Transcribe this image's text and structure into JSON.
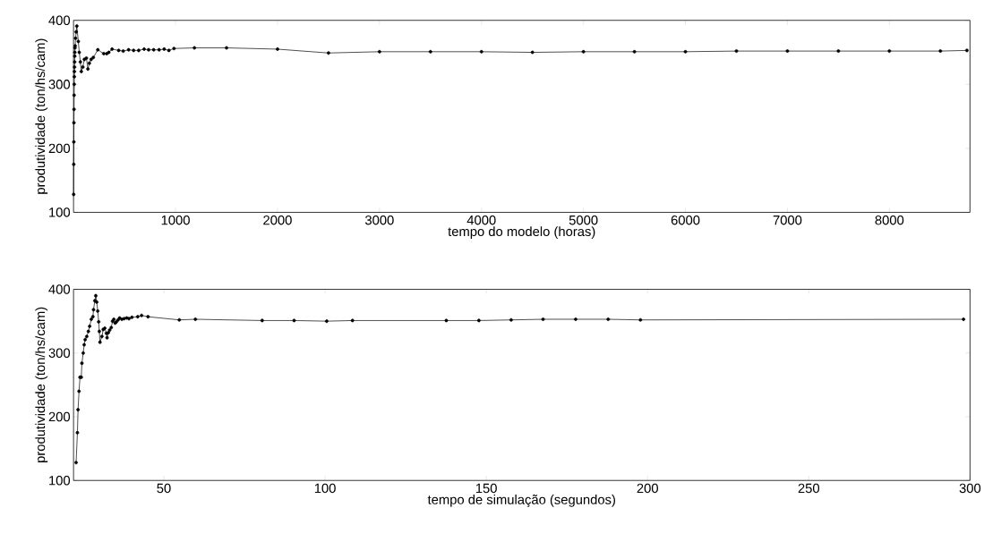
{
  "chart_data": [
    {
      "type": "line",
      "xlabel": "tempo do modelo (horas)",
      "ylabel": "produtividade (ton/hs/cam)",
      "color": "#000000",
      "marker": "circle",
      "line_style": "solid",
      "xlim": [
        0,
        8790
      ],
      "ylim": [
        100,
        400
      ],
      "xticks": [
        1000,
        2000,
        3000,
        4000,
        5000,
        6000,
        7000,
        8000
      ],
      "yticks": [
        100,
        200,
        300,
        400
      ],
      "x": [
        1,
        2,
        3,
        4,
        5,
        6,
        7,
        8,
        9,
        10,
        11,
        12,
        13,
        14,
        16,
        20,
        26,
        32,
        47,
        56,
        67,
        76,
        91,
        106,
        126,
        141,
        155,
        173,
        194,
        238,
        296,
        326,
        346,
        378,
        443,
        487,
        540,
        589,
        639,
        692,
        736,
        786,
        839,
        889,
        935,
        985,
        1185,
        1500,
        2000,
        2500,
        3000,
        3500,
        4000,
        4500,
        5000,
        5500,
        6000,
        6500,
        7000,
        7500,
        8000,
        8500,
        8760
      ],
      "values": [
        128,
        175,
        210,
        240,
        261,
        283,
        300,
        312,
        320,
        327,
        335,
        344,
        350,
        357,
        360,
        372,
        382,
        391,
        367,
        350,
        335,
        320,
        327,
        339,
        341,
        324,
        333,
        339,
        342,
        354,
        348,
        348,
        350,
        355,
        353,
        352,
        354,
        353,
        353,
        355,
        354,
        354,
        354,
        355,
        353,
        356,
        357,
        357,
        355,
        349,
        351,
        351,
        351,
        350,
        351,
        351,
        351,
        352,
        352,
        352,
        352,
        352,
        353
      ]
    },
    {
      "type": "line",
      "xlabel": "tempo de simulação (segundos)",
      "ylabel": "produtividade (ton/hs/cam)",
      "color": "#000000",
      "marker": "circle",
      "line_style": "solid",
      "xlim": [
        22,
        300
      ],
      "ylim": [
        100,
        400
      ],
      "xticks": [
        50,
        100,
        150,
        200,
        250,
        300
      ],
      "yticks": [
        100,
        200,
        300,
        400
      ],
      "x": [
        22.8,
        23.2,
        23.4,
        23.7,
        24.0,
        24.4,
        24.6,
        25.0,
        25.3,
        25.6,
        26.1,
        26.6,
        27.0,
        27.5,
        28.0,
        28.2,
        28.6,
        28.9,
        29.2,
        29.5,
        29.8,
        30.0,
        30.2,
        30.8,
        31.2,
        31.7,
        32.2,
        32.4,
        32.8,
        33.2,
        33.7,
        34.1,
        34.5,
        34.9,
        35.3,
        35.8,
        36.3,
        37.0,
        37.7,
        38.5,
        39.2,
        40.1,
        41.9,
        43.1,
        45.1,
        54.8,
        59.8,
        80.5,
        90.4,
        100.5,
        108.5,
        137.6,
        147.7,
        157.7,
        167.6,
        177.7,
        187.8,
        197.8,
        298
      ],
      "values": [
        128,
        175,
        211,
        240,
        262,
        262,
        284,
        300,
        313,
        321,
        326,
        334,
        342,
        353,
        357,
        368,
        382,
        390,
        380,
        366,
        349,
        334,
        317,
        326,
        337,
        339,
        331,
        324,
        332,
        336,
        340,
        350,
        353,
        347,
        349,
        352,
        355,
        353,
        354,
        355,
        354,
        356,
        357,
        359,
        357,
        352,
        353,
        351,
        351,
        350,
        351,
        351,
        351,
        352,
        353,
        353,
        353,
        352,
        353
      ]
    }
  ]
}
